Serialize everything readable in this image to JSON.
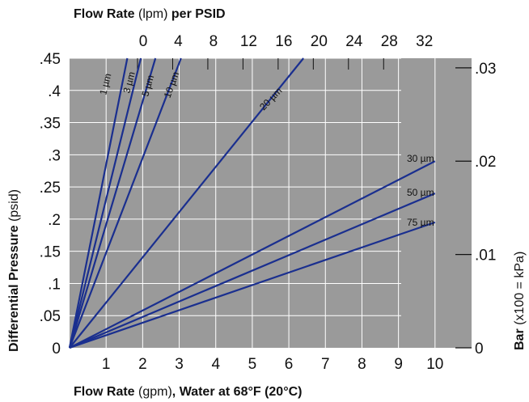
{
  "chart_data": {
    "type": "line",
    "top_title": {
      "bold1": "Flow Rate",
      "normal": " (lpm) ",
      "bold2": "per PSID"
    },
    "bottom_title": {
      "bold1": "Flow Rate",
      "normal": " (gpm)",
      "bold2": ", Water at 68°F (20°C)"
    },
    "left_title": {
      "bold": "Differential Pressure",
      "normal": " (psid)"
    },
    "right_title": {
      "bold": "Bar",
      "normal": " (x100 = kPa)"
    },
    "x": {
      "min": 0,
      "max": 11,
      "ticks": [
        1,
        2,
        3,
        4,
        5,
        6,
        7,
        8,
        9,
        10
      ],
      "tick_labels": [
        "1",
        "2",
        "3",
        "4",
        "5",
        "6",
        "7",
        "8",
        "9",
        "10"
      ]
    },
    "y": {
      "min": 0,
      "max": 0.45,
      "ticks": [
        0,
        0.05,
        0.1,
        0.15,
        0.2,
        0.25,
        0.3,
        0.35,
        0.4,
        0.45
      ],
      "tick_labels": [
        "0",
        ".05",
        ".1",
        ".15",
        ".2",
        ".25",
        ".3",
        ".35",
        ".4",
        ".45"
      ]
    },
    "top_axis": {
      "min": 0,
      "max": 30,
      "ticks": [
        0,
        4,
        8,
        12,
        16,
        20,
        24,
        28,
        32
      ],
      "tick_labels": [
        "0",
        "4",
        "8",
        "12",
        "16",
        "20",
        "24",
        "28",
        "32"
      ]
    },
    "right_axis": {
      "ticks": [
        0,
        0.01,
        0.02,
        0.03
      ],
      "tick_labels": [
        "0",
        ".01",
        ".02",
        ".03"
      ]
    },
    "series": [
      {
        "name": "1 µm",
        "points": [
          [
            0,
            0
          ],
          [
            1.58,
            0.45
          ]
        ]
      },
      {
        "name": "3 µm",
        "points": [
          [
            0,
            0
          ],
          [
            1.95,
            0.45
          ]
        ]
      },
      {
        "name": "5 µm",
        "points": [
          [
            0,
            0
          ],
          [
            2.35,
            0.45
          ]
        ]
      },
      {
        "name": "10 µm",
        "points": [
          [
            0,
            0
          ],
          [
            3.05,
            0.45
          ]
        ]
      },
      {
        "name": "20 µm",
        "points": [
          [
            0,
            0
          ],
          [
            6.4,
            0.45
          ]
        ]
      },
      {
        "name": "30 µm",
        "points": [
          [
            0,
            0
          ],
          [
            10,
            0.29
          ]
        ]
      },
      {
        "name": "50 µm",
        "points": [
          [
            0,
            0
          ],
          [
            10,
            0.24
          ]
        ]
      },
      {
        "name": "75 µm",
        "points": [
          [
            0,
            0
          ],
          [
            10,
            0.195
          ]
        ]
      }
    ],
    "colors": {
      "plot_bg": "#9a9a9a",
      "grid": "#ffffff",
      "line": "#1a2f8f"
    }
  }
}
